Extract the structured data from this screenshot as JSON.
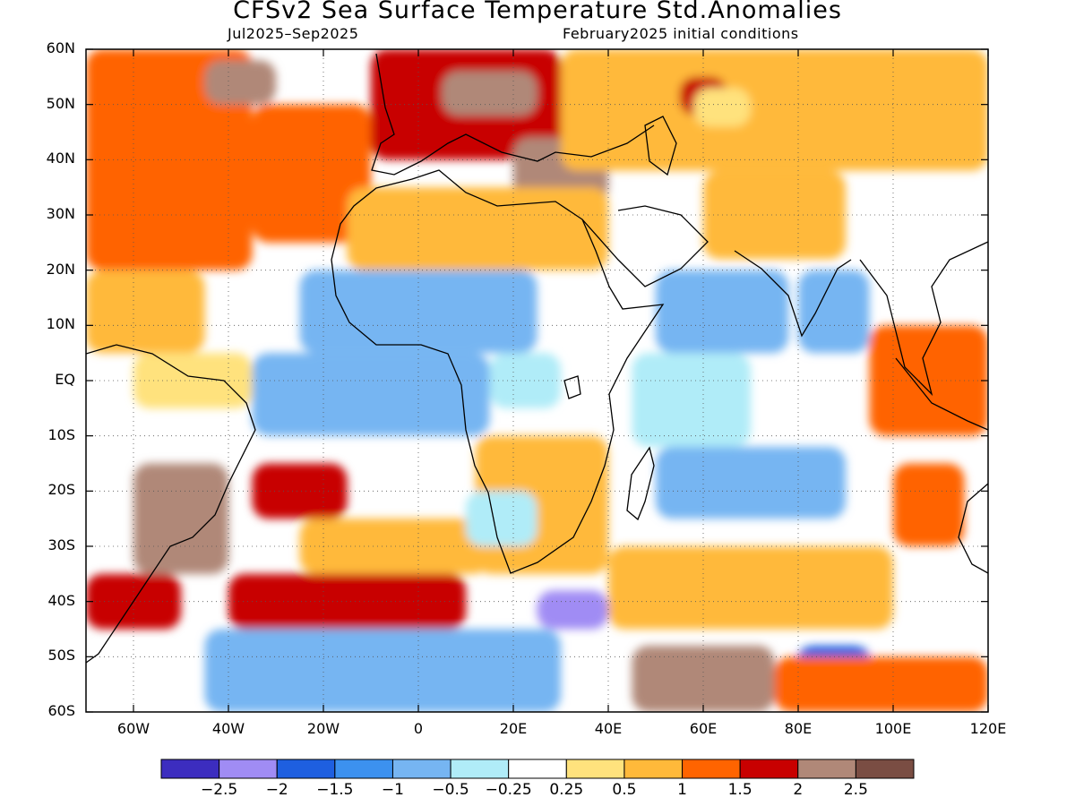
{
  "title": "CFSv2 Sea Surface Temperature Std.Anomalies",
  "subtitle_left": "Jul2025–Sep2025",
  "subtitle_right": "February2025 initial conditions",
  "map": {
    "lon_range": [
      -70,
      120
    ],
    "lat_range": [
      -60,
      60
    ],
    "lat_ticks": [
      {
        "lat": 60,
        "label": "60N"
      },
      {
        "lat": 50,
        "label": "50N"
      },
      {
        "lat": 40,
        "label": "40N"
      },
      {
        "lat": 30,
        "label": "30N"
      },
      {
        "lat": 20,
        "label": "20N"
      },
      {
        "lat": 10,
        "label": "10N"
      },
      {
        "lat": 0,
        "label": "EQ"
      },
      {
        "lat": -10,
        "label": "10S"
      },
      {
        "lat": -20,
        "label": "20S"
      },
      {
        "lat": -30,
        "label": "30S"
      },
      {
        "lat": -40,
        "label": "40S"
      },
      {
        "lat": -50,
        "label": "50S"
      },
      {
        "lat": -60,
        "label": "60S"
      }
    ],
    "lon_ticks": [
      {
        "lon": -60,
        "label": "60W"
      },
      {
        "lon": -40,
        "label": "40W"
      },
      {
        "lon": -20,
        "label": "20W"
      },
      {
        "lon": 0,
        "label": "0"
      },
      {
        "lon": 20,
        "label": "20E"
      },
      {
        "lon": 40,
        "label": "40E"
      },
      {
        "lon": 60,
        "label": "60E"
      },
      {
        "lon": 80,
        "label": "80E"
      },
      {
        "lon": 100,
        "label": "100E"
      },
      {
        "lon": 120,
        "label": "120E"
      }
    ],
    "grid": "dotted"
  },
  "colorbar": {
    "colors": [
      "#3c2dbf",
      "#a08cf4",
      "#1e5fe0",
      "#3c91ef",
      "#76b5f2",
      "#b0ecf8",
      "#ffffff",
      "#ffe27d",
      "#ffb93a",
      "#ff6400",
      "#c80000",
      "#b08878",
      "#7a4d43"
    ],
    "labels": [
      "−2.5",
      "−2",
      "−1.5",
      "−1",
      "−0.5",
      "−0.25",
      "0.25",
      "0.5",
      "1",
      "1.5",
      "2",
      "2.5"
    ]
  },
  "chart_data": {
    "type": "heatmap",
    "title": "CFSv2 Sea Surface Temperature Std.Anomalies",
    "period": "Jul2025–Sep2025",
    "initial_conditions": "February2025 initial conditions",
    "xlim": [
      -70,
      120
    ],
    "ylim": [
      -60,
      60
    ],
    "x_ticks": [
      "60W",
      "40W",
      "20W",
      "0",
      "20E",
      "40E",
      "60E",
      "80E",
      "100E",
      "120E"
    ],
    "y_ticks": [
      "60N",
      "50N",
      "40N",
      "30N",
      "20N",
      "10N",
      "EQ",
      "10S",
      "20S",
      "30S",
      "40S",
      "50S",
      "60S"
    ],
    "levels": [
      -2.5,
      -2,
      -1.5,
      -1,
      -0.5,
      -0.25,
      0.25,
      0.5,
      1,
      1.5,
      2,
      2.5
    ],
    "regions": [
      {
        "lon": [
          -70,
          -35
        ],
        "lat": [
          20,
          60
        ],
        "value": 1.2
      },
      {
        "lon": [
          -35,
          -10
        ],
        "lat": [
          25,
          50
        ],
        "value": 1.4
      },
      {
        "lon": [
          -45,
          -30
        ],
        "lat": [
          50,
          58
        ],
        "value": 2.2
      },
      {
        "lon": [
          -10,
          30
        ],
        "lat": [
          40,
          60
        ],
        "value": 1.8
      },
      {
        "lon": [
          5,
          25
        ],
        "lat": [
          48,
          56
        ],
        "value": 2.4
      },
      {
        "lon": [
          20,
          40
        ],
        "lat": [
          32,
          44
        ],
        "value": 2.3
      },
      {
        "lon": [
          30,
          120
        ],
        "lat": [
          38,
          60
        ],
        "value": 0.9
      },
      {
        "lon": [
          60,
          90
        ],
        "lat": [
          22,
          38
        ],
        "value": 0.7
      },
      {
        "lon": [
          55,
          65
        ],
        "lat": [
          48,
          55
        ],
        "value": 1.5
      },
      {
        "lon": [
          58,
          70
        ],
        "lat": [
          46,
          53
        ],
        "value": 0.3
      },
      {
        "lon": [
          -15,
          40
        ],
        "lat": [
          20,
          35
        ],
        "value": 0.7
      },
      {
        "lon": [
          -70,
          -45
        ],
        "lat": [
          5,
          20
        ],
        "value": 0.5
      },
      {
        "lon": [
          -60,
          -35
        ],
        "lat": [
          -5,
          5
        ],
        "value": 0.4
      },
      {
        "lon": [
          -25,
          25
        ],
        "lat": [
          5,
          20
        ],
        "value": -0.9
      },
      {
        "lon": [
          50,
          78
        ],
        "lat": [
          5,
          20
        ],
        "value": -0.8
      },
      {
        "lon": [
          80,
          95
        ],
        "lat": [
          5,
          20
        ],
        "value": -0.6
      },
      {
        "lon": [
          -35,
          15
        ],
        "lat": [
          -10,
          5
        ],
        "value": -0.7
      },
      {
        "lon": [
          45,
          70
        ],
        "lat": [
          -12,
          5
        ],
        "value": -0.4
      },
      {
        "lon": [
          50,
          90
        ],
        "lat": [
          -25,
          -12
        ],
        "value": -0.7
      },
      {
        "lon": [
          95,
          120
        ],
        "lat": [
          -10,
          10
        ],
        "value": 1.3
      },
      {
        "lon": [
          12,
          40
        ],
        "lat": [
          -35,
          -10
        ],
        "value": 0.6
      },
      {
        "lon": [
          15,
          30
        ],
        "lat": [
          -5,
          5
        ],
        "value": -0.4
      },
      {
        "lon": [
          -60,
          -40
        ],
        "lat": [
          -35,
          -15
        ],
        "value": 2.1
      },
      {
        "lon": [
          -35,
          -15
        ],
        "lat": [
          -25,
          -15
        ],
        "value": 1.5
      },
      {
        "lon": [
          -70,
          -50
        ],
        "lat": [
          -45,
          -35
        ],
        "value": 1.9
      },
      {
        "lon": [
          -25,
          15
        ],
        "lat": [
          -35,
          -25
        ],
        "value": 0.5
      },
      {
        "lon": [
          -40,
          10
        ],
        "lat": [
          -45,
          -35
        ],
        "value": 1.6
      },
      {
        "lon": [
          10,
          25
        ],
        "lat": [
          -30,
          -20
        ],
        "value": -0.5
      },
      {
        "lon": [
          25,
          40
        ],
        "lat": [
          -45,
          -38
        ],
        "value": -2.4
      },
      {
        "lon": [
          -45,
          30
        ],
        "lat": [
          -60,
          -45
        ],
        "value": -1.0
      },
      {
        "lon": [
          45,
          75
        ],
        "lat": [
          -60,
          -48
        ],
        "value": 2.2
      },
      {
        "lon": [
          40,
          100
        ],
        "lat": [
          -45,
          -30
        ],
        "value": 0.8
      },
      {
        "lon": [
          80,
          95
        ],
        "lat": [
          -52,
          -48
        ],
        "value": -1.8
      },
      {
        "lon": [
          75,
          120
        ],
        "lat": [
          -60,
          -50
        ],
        "value": 1.0
      },
      {
        "lon": [
          100,
          115
        ],
        "lat": [
          -30,
          -15
        ],
        "value": 1.3
      }
    ]
  }
}
